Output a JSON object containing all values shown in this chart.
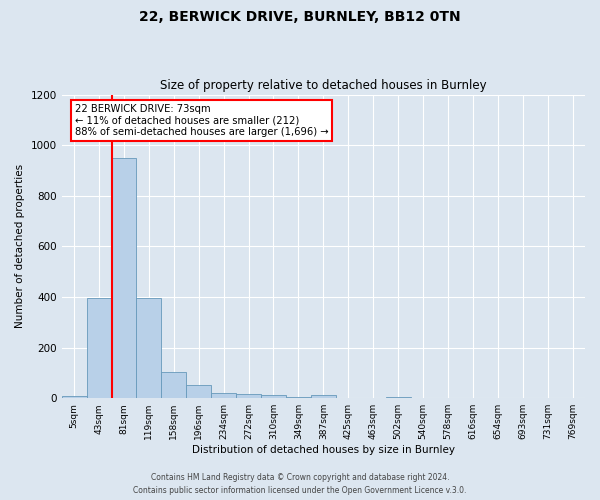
{
  "title_line1": "22, BERWICK DRIVE, BURNLEY, BB12 0TN",
  "title_line2": "Size of property relative to detached houses in Burnley",
  "xlabel": "Distribution of detached houses by size in Burnley",
  "ylabel": "Number of detached properties",
  "bin_labels": [
    "5sqm",
    "43sqm",
    "81sqm",
    "119sqm",
    "158sqm",
    "196sqm",
    "234sqm",
    "272sqm",
    "310sqm",
    "349sqm",
    "387sqm",
    "425sqm",
    "463sqm",
    "502sqm",
    "540sqm",
    "578sqm",
    "616sqm",
    "654sqm",
    "693sqm",
    "731sqm",
    "769sqm"
  ],
  "bar_values": [
    10,
    397,
    950,
    395,
    105,
    52,
    22,
    15,
    12,
    5,
    12,
    0,
    0,
    5,
    0,
    0,
    0,
    0,
    0,
    0,
    0
  ],
  "bar_color": "#b8d0e8",
  "bar_edge_color": "#6699bb",
  "red_line_x": 2.0,
  "annotation_line1": "22 BERWICK DRIVE: 73sqm",
  "annotation_line2": "← 11% of detached houses are smaller (212)",
  "annotation_line3": "88% of semi-detached houses are larger (1,696) →",
  "ylim": [
    0,
    1200
  ],
  "yticks": [
    0,
    200,
    400,
    600,
    800,
    1000,
    1200
  ],
  "footer_line1": "Contains HM Land Registry data © Crown copyright and database right 2024.",
  "footer_line2": "Contains public sector information licensed under the Open Government Licence v.3.0.",
  "background_color": "#dce6f0",
  "plot_bg_color": "#dce6f0",
  "grid_color": "#ffffff",
  "title1_fontsize": 10,
  "title2_fontsize": 8.5
}
